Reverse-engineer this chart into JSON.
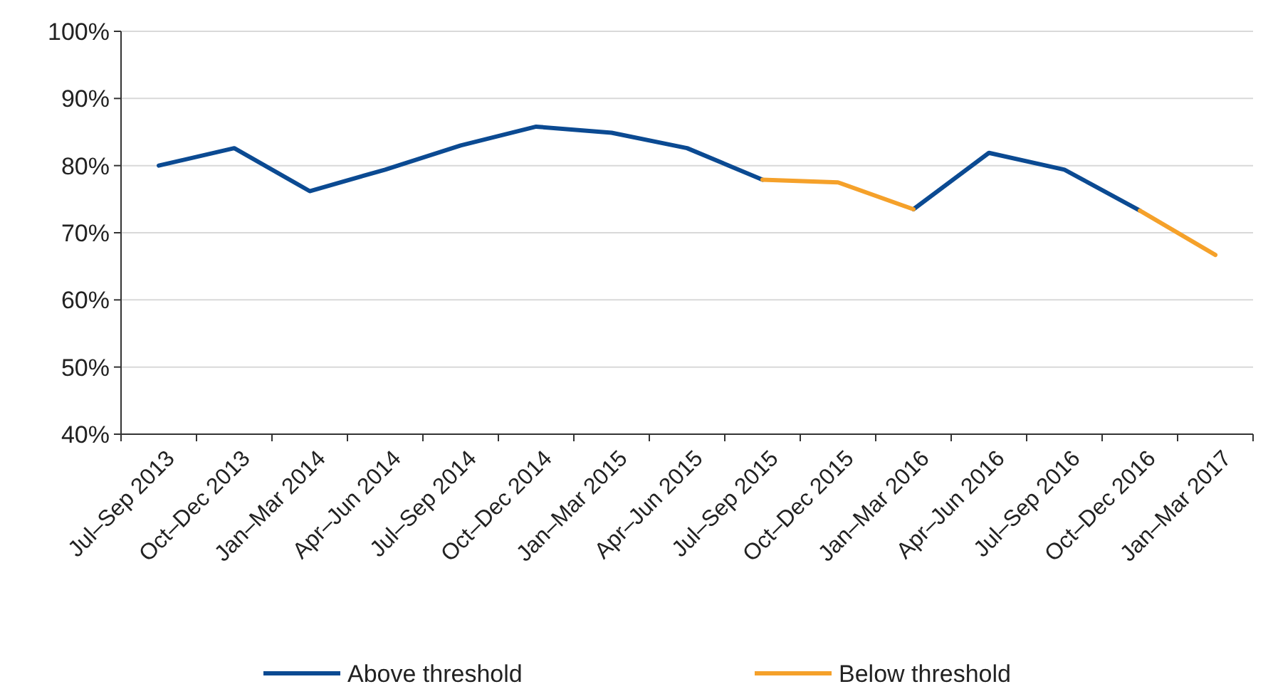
{
  "chart_data": {
    "type": "line",
    "categories": [
      "Jul–Sep 2013",
      "Oct–Dec 2013",
      "Jan–Mar 2014",
      "Apr–Jun 2014",
      "Jul–Sep 2014",
      "Oct–Dec 2014",
      "Jan–Mar 2015",
      "Apr–Jun 2015",
      "Jul–Sep 2015",
      "Oct–Dec 2015",
      "Jan–Mar 2016",
      "Apr–Jun 2016",
      "Jul–Sep 2016",
      "Oct–Dec 2016",
      "Jan–Mar 2017"
    ],
    "series": [
      {
        "name": "Above threshold",
        "color": "#0b4a92",
        "values": [
          80,
          82.6,
          76.2,
          79.4,
          83,
          85.8,
          84.9,
          82.6,
          77.9,
          null,
          73.5,
          81.9,
          79.4,
          73.3,
          null
        ]
      },
      {
        "name": "Below threshold",
        "color": "#f5a12a",
        "values": [
          null,
          null,
          null,
          null,
          null,
          null,
          null,
          null,
          77.9,
          77.5,
          73.5,
          null,
          null,
          73.3,
          66.7
        ]
      }
    ],
    "ylim": [
      40,
      100
    ],
    "yticks": [
      {
        "value": 40,
        "label": "40%"
      },
      {
        "value": 50,
        "label": "50%"
      },
      {
        "value": 60,
        "label": "60%"
      },
      {
        "value": 70,
        "label": "70%"
      },
      {
        "value": 80,
        "label": "80%"
      },
      {
        "value": 90,
        "label": "90%"
      },
      {
        "value": 100,
        "label": "100%"
      }
    ],
    "grid": "y",
    "legend": "bottom",
    "marker": "none",
    "line_style": "solid"
  }
}
